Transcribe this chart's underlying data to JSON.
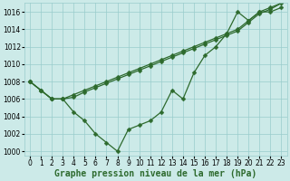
{
  "xlabel": "Graphe pression niveau de la mer (hPa)",
  "bg_color": "#cceae8",
  "grid_color": "#99cccc",
  "line_color": "#2d6a2d",
  "xlim": [
    -0.5,
    23.5
  ],
  "ylim": [
    999.5,
    1017.0
  ],
  "yticks": [
    1000,
    1002,
    1004,
    1006,
    1008,
    1010,
    1012,
    1014,
    1016
  ],
  "xticks": [
    0,
    1,
    2,
    3,
    4,
    5,
    6,
    7,
    8,
    9,
    10,
    11,
    12,
    13,
    14,
    15,
    16,
    17,
    18,
    19,
    20,
    21,
    22,
    23
  ],
  "series": [
    [
      1008,
      1007,
      1006,
      1006,
      1004.5,
      1003.5,
      1002,
      1001,
      1000,
      1002.5,
      1003,
      1003.5,
      1004.5,
      1007,
      1006,
      1009,
      1011,
      1012,
      1013.5,
      1016,
      1015,
      1016,
      1016,
      1016.5
    ],
    [
      1008,
      1007,
      1006,
      1006,
      1006.5,
      1007,
      1007.5,
      1008,
      1008.5,
      1009,
      1009.5,
      1010,
      1010.5,
      1011,
      1011.5,
      1012,
      1012.5,
      1013,
      1013.5,
      1014,
      1015,
      1016,
      1016.5,
      1017
    ],
    [
      1008,
      1007,
      1006,
      1006,
      1006.2,
      1006.8,
      1007.3,
      1007.8,
      1008.3,
      1008.8,
      1009.3,
      1009.8,
      1010.3,
      1010.8,
      1011.3,
      1011.8,
      1012.3,
      1012.8,
      1013.3,
      1013.8,
      1014.8,
      1015.8,
      1016.3,
      1017
    ]
  ],
  "marker": "D",
  "markersize": 2.5,
  "linewidth": 0.9,
  "tick_fontsize": 5.5,
  "xlabel_fontsize": 7.0
}
